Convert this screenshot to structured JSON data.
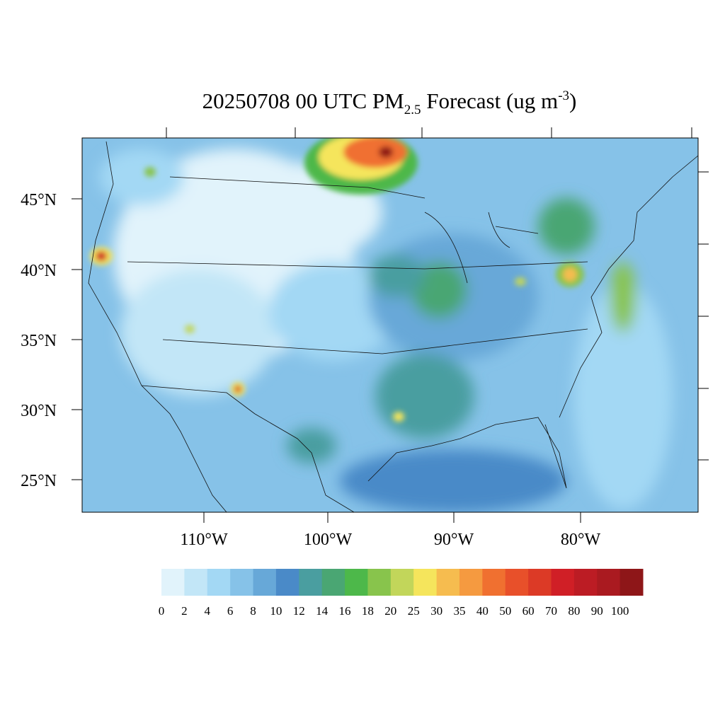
{
  "map": {
    "title": {
      "main": "20250708 00 UTC PM",
      "subscript": "2.5",
      "middle": " Forecast (ug m",
      "superscript": "-3",
      "end": ")"
    },
    "lat_labels": [
      "45°N",
      "40°N",
      "35°N",
      "30°N",
      "25°N"
    ],
    "lon_labels": [
      "110°W",
      "100°W",
      "90°W",
      "80°W"
    ],
    "colorbar": {
      "levels": [
        0,
        2,
        4,
        6,
        8,
        10,
        12,
        14,
        16,
        18,
        20,
        25,
        30,
        35,
        40,
        50,
        60,
        70,
        80,
        90,
        100
      ],
      "colors": [
        "#e1f3fb",
        "#c2e6f7",
        "#a3d8f4",
        "#86c2e8",
        "#67a8d8",
        "#4a8ac8",
        "#4a9ea0",
        "#4aa673",
        "#4db84a",
        "#88c44c",
        "#c2d65a",
        "#f5e55c",
        "#f6bc4f",
        "#f59a40",
        "#f07030",
        "#e8502a",
        "#dc3a26",
        "#d01f26",
        "#bc1c24",
        "#aa1a20",
        "#8e1618"
      ]
    }
  }
}
